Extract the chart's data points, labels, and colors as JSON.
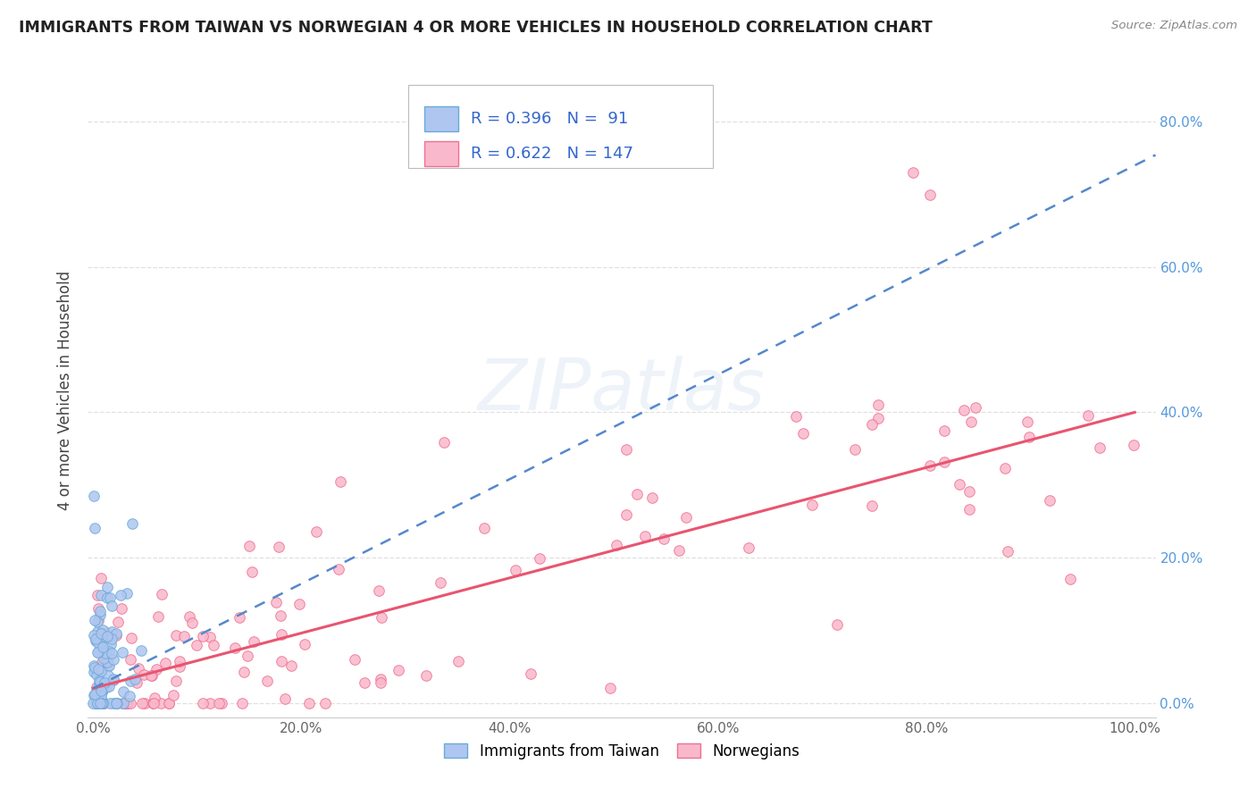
{
  "title": "IMMIGRANTS FROM TAIWAN VS NORWEGIAN 4 OR MORE VEHICLES IN HOUSEHOLD CORRELATION CHART",
  "source": "Source: ZipAtlas.com",
  "ylabel": "4 or more Vehicles in Household",
  "watermark": "ZIPatlas",
  "legend1_r": "0.396",
  "legend1_n": "91",
  "legend2_r": "0.622",
  "legend2_n": "147",
  "taiwan_fill": "#aec6f0",
  "taiwan_edge": "#6aaad8",
  "norwegian_fill": "#f9b8cc",
  "norwegian_edge": "#f07090",
  "taiwan_line_color": "#5588cc",
  "norwegian_line_color": "#e85570",
  "ytick_color": "#5599dd",
  "xtick_color": "#666666",
  "title_color": "#222222",
  "source_color": "#888888",
  "ylabel_color": "#444444",
  "grid_color": "#e0e0e0",
  "legend_text_color": "#3366cc",
  "legend_edge_color": "#bbbbbb",
  "bottom_legend_label1": "Immigrants from Taiwan",
  "bottom_legend_label2": "Norwegians"
}
